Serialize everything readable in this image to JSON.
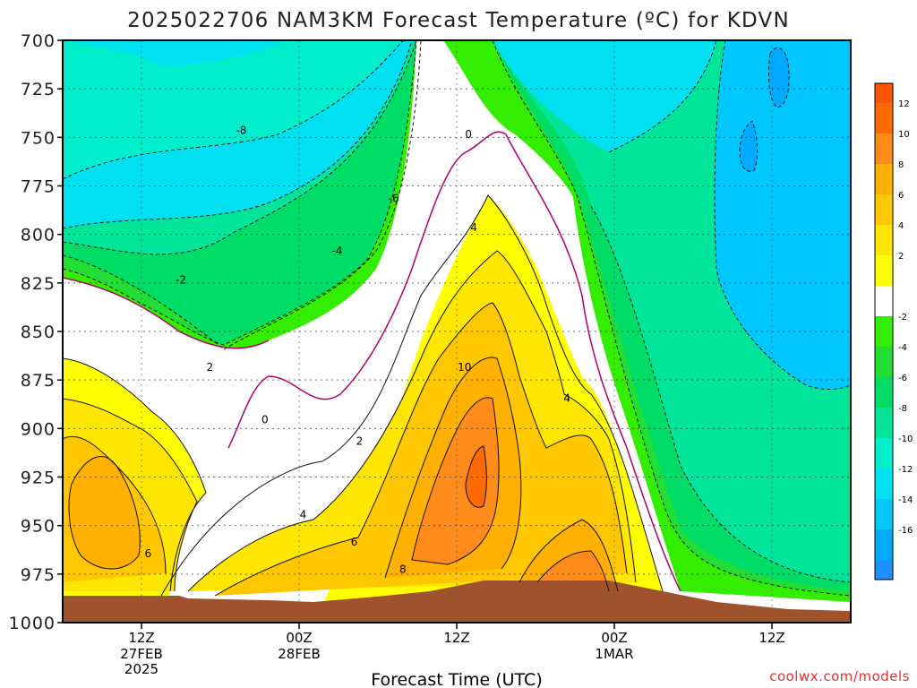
{
  "chart_data": {
    "type": "filled-contour",
    "title": "2025022706 NAM3KM Forecast Temperature (ºC) for KDVN",
    "xlabel": "Forecast Time (UTC)",
    "ylabel": "",
    "y_axis": {
      "ticks": [
        "700",
        "725",
        "750",
        "775",
        "800",
        "825",
        "850",
        "875",
        "900",
        "925",
        "950",
        "975",
        "1000"
      ],
      "range": [
        700,
        1000
      ],
      "inverted": true
    },
    "x_axis": {
      "ticks": [
        {
          "label": "12Z",
          "sub1": "27FEB",
          "sub2": "2025",
          "hour": 6
        },
        {
          "label": "00Z",
          "sub1": "28FEB",
          "sub2": "",
          "hour": 18
        },
        {
          "label": "12Z",
          "sub1": "",
          "sub2": "",
          "hour": 30
        },
        {
          "label": "00Z",
          "sub1": "1MAR",
          "sub2": "",
          "hour": 42
        },
        {
          "label": "12Z",
          "sub1": "",
          "sub2": "",
          "hour": 54
        }
      ],
      "range_hours_from_init": [
        0,
        60
      ]
    },
    "grid": true,
    "colorbar": {
      "placement": "right",
      "bins": [
        {
          "label": "12",
          "color": "#ff6a00"
        },
        {
          "label": "10",
          "color": "#ff8c1a"
        },
        {
          "label": "8",
          "color": "#ffb000"
        },
        {
          "label": "6",
          "color": "#ffc700"
        },
        {
          "label": "4",
          "color": "#ffe600"
        },
        {
          "label": "2",
          "color": "#ffff00"
        },
        {
          "label": "",
          "color": "#ffffff"
        },
        {
          "label": "-2",
          "color": "#33ee00"
        },
        {
          "label": "-4",
          "color": "#22dd33"
        },
        {
          "label": "-6",
          "color": "#00dd66"
        },
        {
          "label": "-8",
          "color": "#00e59a"
        },
        {
          "label": "-10",
          "color": "#00eecc"
        },
        {
          "label": "-12",
          "color": "#00e0f0"
        },
        {
          "label": "-14",
          "color": "#00c8ff"
        },
        {
          "label": "-16",
          "color": "#00aaff"
        }
      ],
      "top_color": "#ff5500",
      "bottom_color": "#1e90ff"
    },
    "contour_labels": [
      {
        "text": "-8",
        "time": 13.6,
        "p": 746
      },
      {
        "text": "-6",
        "time": 25.2,
        "p": 781
      },
      {
        "text": "-4",
        "time": 20.9,
        "p": 808
      },
      {
        "text": "-2",
        "time": 9.0,
        "p": 823
      },
      {
        "text": "2",
        "time": 11.2,
        "p": 868
      },
      {
        "text": "0",
        "time": 15.4,
        "p": 895
      },
      {
        "text": "0",
        "time": 30.9,
        "p": 748
      },
      {
        "text": "4",
        "time": 31.3,
        "p": 796
      },
      {
        "text": "10",
        "time": 30.6,
        "p": 868
      },
      {
        "text": "4",
        "time": 38.4,
        "p": 884
      },
      {
        "text": "2",
        "time": 22.6,
        "p": 906
      },
      {
        "text": "4",
        "time": 18.3,
        "p": 944
      },
      {
        "text": "6",
        "time": 22.2,
        "p": 958
      },
      {
        "text": "6",
        "time": 6.5,
        "p": 964
      },
      {
        "text": "8",
        "time": 25.9,
        "p": 972
      }
    ],
    "surface_color": "#a0522d"
  },
  "watermark": "coolwx.com/models"
}
